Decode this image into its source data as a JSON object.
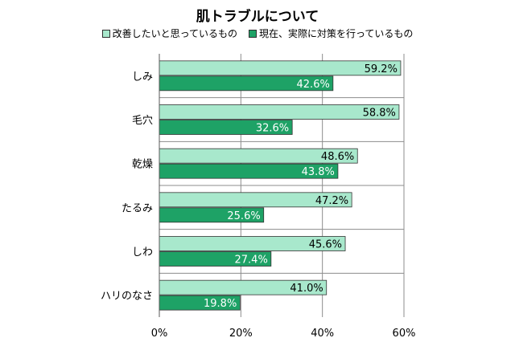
{
  "chart_data": {
    "type": "bar",
    "orientation": "horizontal",
    "title": "肌トラブルについて",
    "categories": [
      "しみ",
      "毛穴",
      "乾燥",
      "たるみ",
      "しわ",
      "ハリのなさ"
    ],
    "series": [
      {
        "name": "改善したいと思っているもの",
        "color": "#a8e8cc",
        "values": [
          59.2,
          58.8,
          48.6,
          47.2,
          45.6,
          41.0
        ],
        "labels": [
          "59.2%",
          "58.8%",
          "48.6%",
          "47.2%",
          "45.6%",
          "41.0%"
        ]
      },
      {
        "name": "現在、実際に対策を行っているもの",
        "color": "#1ea266",
        "values": [
          42.6,
          32.6,
          43.8,
          25.6,
          27.4,
          19.8
        ],
        "labels": [
          "42.6%",
          "32.6%",
          "43.8%",
          "25.6%",
          "27.4%",
          "19.8%"
        ]
      }
    ],
    "xlim": [
      0,
      60
    ],
    "xticks": [
      0,
      20,
      40,
      60
    ],
    "xtick_labels": [
      "0%",
      "20%",
      "40%",
      "60%"
    ],
    "grid": true,
    "legend_position": "top"
  }
}
